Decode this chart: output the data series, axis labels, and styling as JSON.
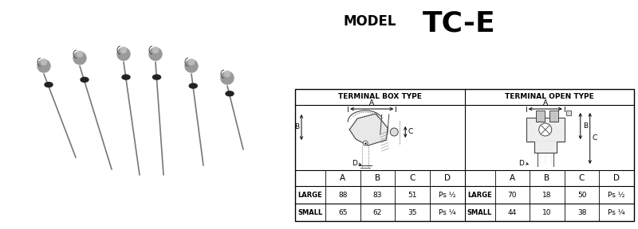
{
  "bg_color": "#ffffff",
  "title_model": "MODEL",
  "title_tc": "TC-E",
  "table_header_left": "TERMINAL BOX TYPE",
  "table_header_right": "TERMINAL OPEN TYPE",
  "col_headers": [
    "A",
    "B",
    "C",
    "D"
  ],
  "row_labels": [
    "LARGE",
    "SMALL"
  ],
  "left_data": [
    [
      "88",
      "83",
      "51",
      "Ps ½"
    ],
    [
      "65",
      "62",
      "35",
      "Ps ¼"
    ]
  ],
  "right_data": [
    [
      "70",
      "18",
      "50",
      "Ps ½"
    ],
    [
      "44",
      "10",
      "38",
      "Ps ¼"
    ]
  ],
  "probe_color": "#555555",
  "line_color": "#333333"
}
